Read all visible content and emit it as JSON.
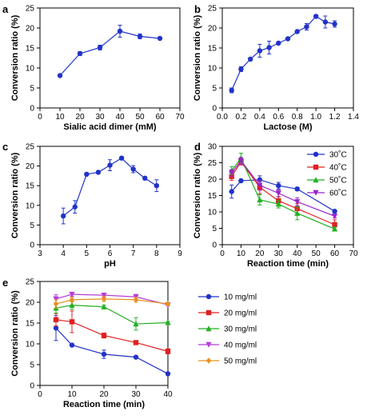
{
  "chart_data": [
    {
      "id": "a",
      "type": "line",
      "panel_letter": "a",
      "xlabel": "Sialic acid dimer (mM)",
      "ylabel": "Conversion ratio (%)",
      "xlim": [
        0,
        70
      ],
      "ylim": [
        0,
        25
      ],
      "xticks": [
        0,
        10,
        20,
        30,
        40,
        50,
        60,
        70
      ],
      "yticks": [
        0,
        5,
        10,
        15,
        20,
        25
      ],
      "color": "#2133c8",
      "series": [
        {
          "x": [
            10,
            20,
            30,
            40,
            50,
            60
          ],
          "values": [
            8.1,
            13.6,
            15.1,
            19.2,
            17.9,
            17.4
          ],
          "errors": [
            0,
            0.5,
            0.6,
            1.5,
            0.6,
            0.3
          ]
        }
      ]
    },
    {
      "id": "b",
      "type": "line",
      "panel_letter": "b",
      "xlabel": "Lactose (M)",
      "ylabel": "Conversion ratio (%)",
      "xlim": [
        0,
        1.4
      ],
      "ylim": [
        0,
        25
      ],
      "xticks": [
        0.0,
        0.2,
        0.4,
        0.6,
        0.8,
        1.0,
        1.2,
        1.4
      ],
      "xtick_labels": [
        "0.0",
        "0.2",
        "0.4",
        "0.6",
        "0.8",
        "1.0",
        "1.2",
        "1.4"
      ],
      "yticks": [
        0,
        5,
        10,
        15,
        20,
        25
      ],
      "color": "#2133c8",
      "series": [
        {
          "x": [
            0.1,
            0.2,
            0.3,
            0.4,
            0.5,
            0.6,
            0.7,
            0.8,
            0.9,
            1.0,
            1.1,
            1.2
          ],
          "values": [
            4.4,
            9.7,
            12.2,
            14.3,
            15.1,
            16.2,
            17.3,
            19.1,
            20.3,
            22.9,
            21.5,
            21.0
          ],
          "errors": [
            0.6,
            0.6,
            0.4,
            1.6,
            1.6,
            0.3,
            0.3,
            0.3,
            0.8,
            0.4,
            1.5,
            0.8
          ]
        }
      ]
    },
    {
      "id": "c",
      "type": "line",
      "panel_letter": "c",
      "xlabel": "pH",
      "ylabel": "Conversion ratio (%)",
      "xlim": [
        3,
        9
      ],
      "ylim": [
        0,
        25
      ],
      "xticks": [
        3,
        4,
        5,
        6,
        7,
        8,
        9
      ],
      "yticks": [
        0,
        5,
        10,
        15,
        20,
        25
      ],
      "color": "#2133c8",
      "series": [
        {
          "x": [
            4,
            4.5,
            5,
            5.5,
            6,
            6.5,
            7,
            7.5,
            8
          ],
          "values": [
            7.3,
            9.6,
            17.9,
            18.4,
            20.2,
            22.0,
            19.2,
            16.9,
            15.0
          ],
          "errors": [
            2.0,
            1.6,
            0.3,
            0.3,
            1.4,
            0.4,
            0.9,
            0.4,
            1.5
          ]
        }
      ]
    },
    {
      "id": "d",
      "type": "line",
      "panel_letter": "d",
      "xlabel": "Reaction time (min)",
      "ylabel": "Conversion ratio (%)",
      "xlim": [
        0,
        70
      ],
      "ylim": [
        0,
        30
      ],
      "xticks": [
        0,
        10,
        20,
        30,
        40,
        50,
        60,
        70
      ],
      "xtick_labels": [
        "0",
        "10",
        "20",
        "30",
        "40",
        "50",
        "60",
        "70"
      ],
      "yticks": [
        0,
        5,
        10,
        15,
        20,
        25,
        30
      ],
      "x": [
        5,
        10,
        20,
        30,
        40,
        60
      ],
      "series": [
        {
          "name": "30˚C",
          "color": "#2133c8",
          "marker": "circle",
          "values": [
            16.2,
            19.5,
            19.8,
            18.0,
            17.0,
            10.2
          ],
          "errors": [
            2.0,
            0.4,
            1.2,
            1.0,
            0.5,
            0.3
          ]
        },
        {
          "name": "40˚C",
          "color": "#e02020",
          "marker": "square",
          "values": [
            20.8,
            25.3,
            17.5,
            13.4,
            11.0,
            6.1
          ],
          "errors": [
            1.2,
            1.0,
            2.0,
            1.2,
            1.5,
            1.5
          ]
        },
        {
          "name": "50˚C",
          "color": "#22b022",
          "marker": "triangle",
          "values": [
            22.6,
            26.4,
            13.7,
            12.4,
            9.6,
            4.8
          ],
          "errors": [
            1.2,
            1.5,
            1.6,
            1.2,
            2.0,
            0.5
          ]
        },
        {
          "name": "60˚C",
          "color": "#9a22cc",
          "marker": "triangle-down",
          "values": [
            21.9,
            25.6,
            18.1,
            15.7,
            13.1,
            8.7
          ],
          "errors": [
            1.0,
            1.0,
            1.5,
            1.0,
            1.2,
            0.5
          ]
        }
      ]
    },
    {
      "id": "e",
      "type": "line",
      "panel_letter": "e",
      "xlabel": "Reaction time (min)",
      "ylabel": "Conversion ratio (%)",
      "xlim": [
        0,
        40
      ],
      "ylim": [
        0,
        25
      ],
      "xticks": [
        0,
        10,
        20,
        30,
        40
      ],
      "yticks": [
        0,
        5,
        10,
        15,
        20,
        25
      ],
      "x": [
        5,
        10,
        20,
        30,
        40
      ],
      "series": [
        {
          "name": "10 mg/ml",
          "color": "#2133c8",
          "marker": "circle",
          "values": [
            13.8,
            9.7,
            7.5,
            6.8,
            2.8
          ],
          "errors": [
            3.0,
            0.3,
            1.0,
            0.3,
            0.3
          ]
        },
        {
          "name": "20 mg/ml",
          "color": "#e02020",
          "marker": "square",
          "values": [
            15.8,
            15.3,
            12.0,
            10.3,
            8.2
          ],
          "errors": [
            1.5,
            2.6,
            0.6,
            0.3,
            0.6
          ]
        },
        {
          "name": "30 mg/ml",
          "color": "#22b022",
          "marker": "triangle",
          "values": [
            18.6,
            19.3,
            18.9,
            14.8,
            15.1
          ],
          "errors": [
            1.2,
            1.0,
            0.4,
            1.5,
            0.3
          ]
        },
        {
          "name": "40 mg/ml",
          "color": "#b73cd8",
          "marker": "triangle-down",
          "values": [
            20.8,
            21.9,
            21.7,
            21.3,
            19.4
          ],
          "errors": [
            1.0,
            0.5,
            0.5,
            0.6,
            0.3
          ]
        },
        {
          "name": "50 mg/ml",
          "color": "#e8901c",
          "marker": "diamond",
          "values": [
            19.6,
            20.6,
            20.8,
            20.6,
            19.6
          ],
          "errors": [
            1.0,
            0.6,
            0.6,
            0.6,
            0.3
          ]
        }
      ]
    }
  ]
}
